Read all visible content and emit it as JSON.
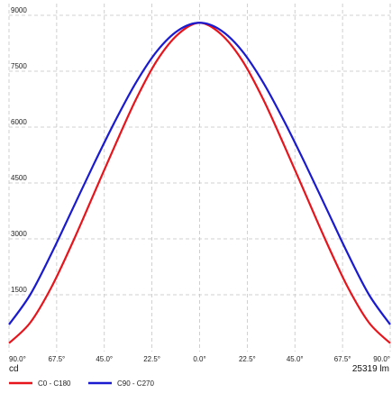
{
  "chart_data": {
    "type": "line",
    "title": "",
    "xlabel": "",
    "ylabel": "cd",
    "flux_label": "25319 lm",
    "x_axis": {
      "range": [
        -90,
        90
      ],
      "ticks": [
        -90,
        -67.5,
        -45,
        -22.5,
        0,
        22.5,
        45,
        67.5,
        90
      ],
      "tick_labels": [
        "90.0°",
        "67.5°",
        "45.0°",
        "22.5°",
        "0.0°",
        "22.5°",
        "45.0°",
        "67.5°",
        "90.0°"
      ]
    },
    "y_axis": {
      "range": [
        0,
        9000
      ],
      "ticks": [
        1500,
        3000,
        4500,
        6000,
        7500,
        9000
      ],
      "tick_labels": [
        "1500",
        "3000",
        "4500",
        "6000",
        "7500",
        "9000"
      ]
    },
    "grid": true,
    "legend_position": "bottom-left",
    "series": [
      {
        "name": "C0 - C180",
        "color": "#e8141c",
        "x": [
          -90,
          -80,
          -70,
          -60,
          -50,
          -40,
          -30,
          -20,
          -10,
          0,
          10,
          20,
          30,
          40,
          50,
          60,
          70,
          80,
          90
        ],
        "y": [
          200,
          750,
          1700,
          2900,
          4200,
          5500,
          6750,
          7800,
          8500,
          8800,
          8500,
          7800,
          6750,
          5500,
          4200,
          2900,
          1700,
          750,
          200
        ]
      },
      {
        "name": "C90 - C270",
        "color": "#1a1ad0",
        "x": [
          -90,
          -80,
          -70,
          -60,
          -50,
          -40,
          -30,
          -20,
          -10,
          0,
          10,
          20,
          30,
          40,
          50,
          60,
          70,
          80,
          90
        ],
        "y": [
          700,
          1500,
          2600,
          3800,
          5000,
          6150,
          7200,
          8050,
          8600,
          8800,
          8600,
          8050,
          7200,
          6150,
          5000,
          3800,
          2600,
          1500,
          700
        ]
      }
    ]
  }
}
